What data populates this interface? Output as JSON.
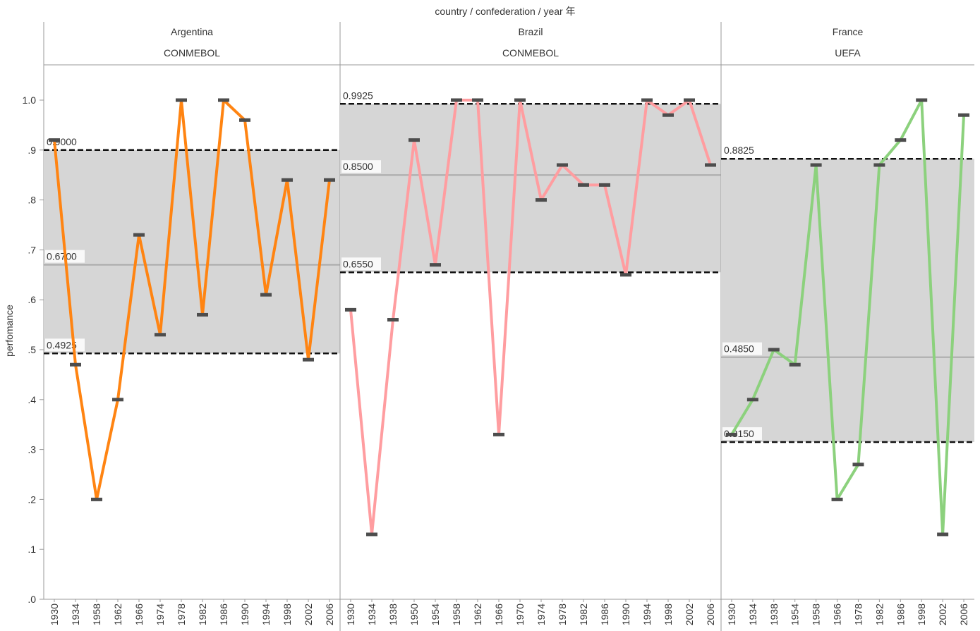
{
  "header": {
    "title": "country  /  confederation  /  year 年"
  },
  "chart_data": {
    "type": "line",
    "ylabel": "perfomance",
    "ylim": [
      0,
      1.07
    ],
    "yticks": [
      {
        "value": 1.0,
        "label": "1.0"
      },
      {
        "value": 0.9,
        "label": ".9"
      },
      {
        "value": 0.8,
        "label": ".8"
      },
      {
        "value": 0.7,
        "label": ".7"
      },
      {
        "value": 0.6,
        "label": ".6"
      },
      {
        "value": 0.5,
        "label": ".5"
      },
      {
        "value": 0.4,
        "label": ".4"
      },
      {
        "value": 0.3,
        "label": ".3"
      },
      {
        "value": 0.2,
        "label": ".2"
      },
      {
        "value": 0.1,
        "label": ".1"
      },
      {
        "value": 0.0,
        "label": ".0"
      }
    ],
    "grid": false,
    "band_color": "#d6d6d6",
    "panels": [
      {
        "country": "Argentina",
        "confederation": "CONMEBOL",
        "color": "#ff8412",
        "x": [
          "1930",
          "1934",
          "1958",
          "1962",
          "1966",
          "1974",
          "1978",
          "1982",
          "1986",
          "1990",
          "1994",
          "1998",
          "2002",
          "2006"
        ],
        "values": [
          0.92,
          0.47,
          0.2,
          0.4,
          0.73,
          0.53,
          1.0,
          0.57,
          1.0,
          0.96,
          0.61,
          0.84,
          0.48,
          0.84
        ],
        "reference_lines": {
          "upper": {
            "value": 0.9,
            "label": "0.9000"
          },
          "median": {
            "value": 0.67,
            "label": "0.6700"
          },
          "lower": {
            "value": 0.4925,
            "label": "0.4925"
          }
        }
      },
      {
        "country": "Brazil",
        "confederation": "CONMEBOL",
        "color": "#ff9da0",
        "x": [
          "1930",
          "1934",
          "1938",
          "1950",
          "1954",
          "1958",
          "1962",
          "1966",
          "1970",
          "1974",
          "1978",
          "1982",
          "1986",
          "1990",
          "1994",
          "1998",
          "2002",
          "2006"
        ],
        "values": [
          0.58,
          0.13,
          0.56,
          0.92,
          0.67,
          1.0,
          1.0,
          0.33,
          1.0,
          0.8,
          0.87,
          0.83,
          0.83,
          0.65,
          1.0,
          0.97,
          1.0,
          0.87
        ],
        "reference_lines": {
          "upper": {
            "value": 0.9925,
            "label": "0.9925"
          },
          "median": {
            "value": 0.85,
            "label": "0.8500"
          },
          "lower": {
            "value": 0.655,
            "label": "0.6550"
          }
        }
      },
      {
        "country": "France",
        "confederation": "UEFA",
        "color": "#8cd17d",
        "x": [
          "1930",
          "1934",
          "1938",
          "1954",
          "1958",
          "1966",
          "1978",
          "1982",
          "1986",
          "1998",
          "2002",
          "2006"
        ],
        "values": [
          0.33,
          0.4,
          0.5,
          0.47,
          0.87,
          0.2,
          0.27,
          0.87,
          0.92,
          1.0,
          0.13,
          0.97
        ],
        "reference_lines": {
          "upper": {
            "value": 0.8825,
            "label": "0.8825"
          },
          "median": {
            "value": 0.485,
            "label": "0.4850"
          },
          "lower": {
            "value": 0.315,
            "label": "0.3150"
          }
        }
      }
    ]
  }
}
